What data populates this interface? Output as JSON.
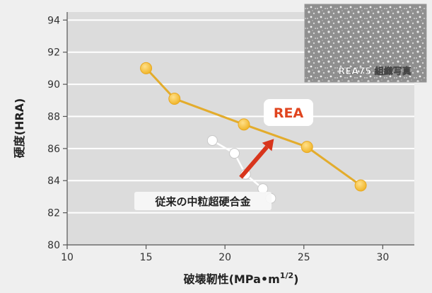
{
  "chart_data": {
    "type": "line",
    "xlabel": "破壊靭性(MPa•m",
    "xlabel_sup": "1/2",
    "xlabel_close": ")",
    "ylabel": "硬度(HRA)",
    "xlim": [
      10,
      32
    ],
    "ylim": [
      80,
      94.5
    ],
    "x_ticks": [
      10,
      15,
      20,
      25,
      30
    ],
    "y_ticks": [
      80,
      82,
      84,
      86,
      88,
      90,
      92,
      94
    ],
    "grid": "horizontal",
    "series": [
      {
        "name": "REA",
        "color": "#f5c24a",
        "line_color": "#e3ac2c",
        "points": [
          [
            15.0,
            91.0
          ],
          [
            16.8,
            89.1
          ],
          [
            21.2,
            87.5
          ],
          [
            25.2,
            86.1
          ],
          [
            28.6,
            83.7
          ]
        ]
      },
      {
        "name": "従来の中粒超硬合金",
        "color": "#ffffff",
        "line_color": "#ffffff",
        "points": [
          [
            19.2,
            86.5
          ],
          [
            20.6,
            85.7
          ],
          [
            21.3,
            84.4
          ],
          [
            22.4,
            83.5
          ],
          [
            22.9,
            82.9
          ]
        ]
      }
    ],
    "annotations": {
      "rea_label": "REA",
      "conventional_label": "従来の中粒超硬合金",
      "arrow": {
        "from": [
          21.0,
          84.2
        ],
        "to": [
          23.1,
          86.6
        ],
        "color": "#d8351c"
      }
    },
    "inset": {
      "label": "REA75 組織写真"
    }
  }
}
